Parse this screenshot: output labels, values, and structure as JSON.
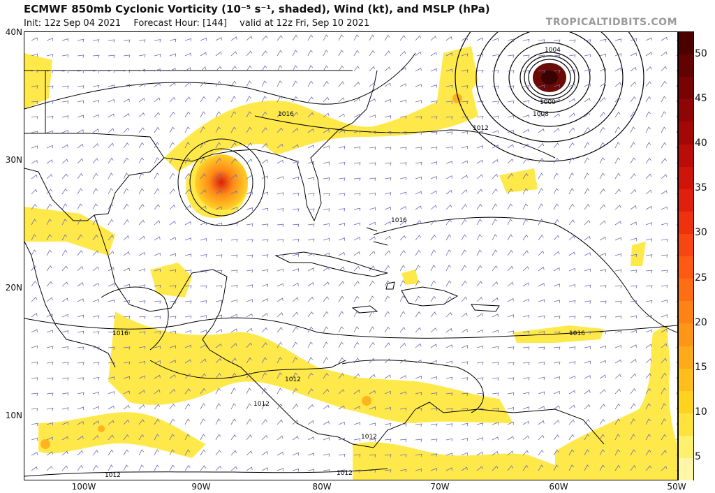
{
  "header": {
    "title": "ECMWF 850mb Cyclonic Vorticity (10⁻⁵ s⁻¹, shaded), Wind (kt), and MSLP (hPa)",
    "init": "Init: 12z Sep 04 2021",
    "forecast_hour": "Forecast Hour: [144]",
    "valid": "valid at 12z Fri, Sep 10 2021",
    "brand": "TROPICALTIDBITS.COM"
  },
  "axes": {
    "lat_labels": [
      "40N",
      "30N",
      "20N",
      "10N"
    ],
    "lon_labels": [
      "100W",
      "90W",
      "80W",
      "70W",
      "60W",
      "50W"
    ]
  },
  "colorbar": {
    "ticks": [
      "50",
      "45",
      "40",
      "35",
      "30",
      "25",
      "20",
      "15",
      "10",
      "5"
    ],
    "colors": [
      "#fff6a8",
      "#fff06e",
      "#ffe23c",
      "#ffd21e",
      "#ffbe1c",
      "#ffaa1a",
      "#ff9618",
      "#ff8216",
      "#ff6e14",
      "#ff5a12",
      "#f84610",
      "#ee320e",
      "#e0200c",
      "#cf140a",
      "#ba0c08",
      "#a40806",
      "#8e0505",
      "#780303",
      "#620202",
      "#4c0101"
    ]
  },
  "isobar_labels": [
    "1004",
    "1000",
    "1008",
    "1012",
    "1016",
    "1016",
    "1016",
    "1016",
    "1012",
    "1012",
    "1012",
    "1012",
    "1012"
  ],
  "colors": {
    "vorticity_low": "#ffe94a",
    "vorticity_high": "#e22a10",
    "isobar": "#000000",
    "coast": "#000000",
    "barb": "#6a6ab4"
  }
}
